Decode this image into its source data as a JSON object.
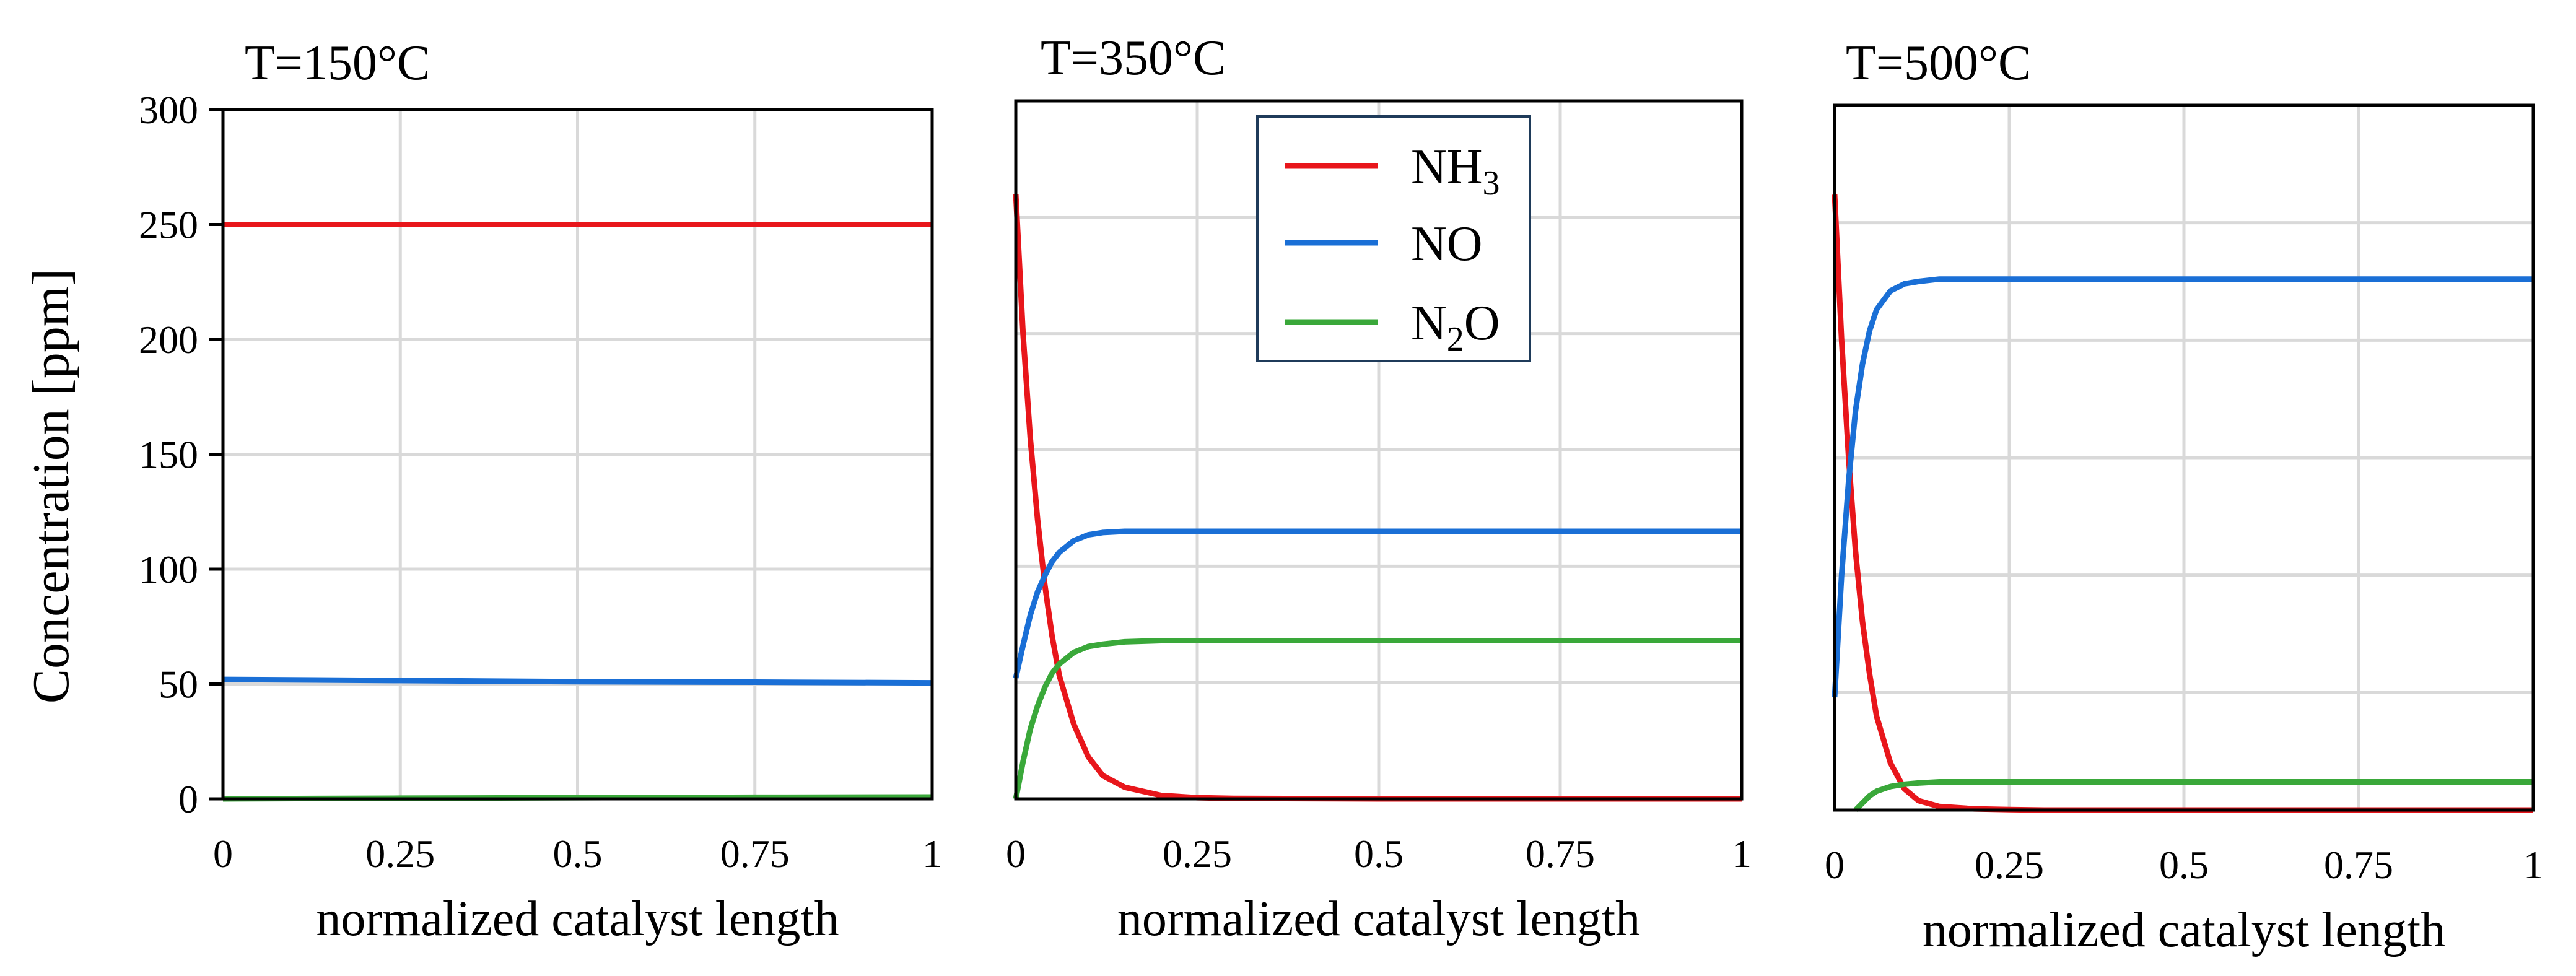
{
  "chart_data": {
    "type": "line",
    "ylabel": "Concentration [ppm]",
    "xlabel": "normalized catalyst length",
    "colors": {
      "NH3": "#e8161b",
      "NO": "#1a6fd6",
      "N2O": "#3aa83a"
    },
    "legend": {
      "placement": "top-center of middle panel",
      "entries": [
        {
          "key": "NH3",
          "base": "NH",
          "sub": "3",
          "after": ""
        },
        {
          "key": "NO",
          "base": "NO",
          "sub": "",
          "after": ""
        },
        {
          "key": "N2O",
          "base": "N",
          "sub": "2",
          "after": "O"
        }
      ]
    },
    "panels": [
      {
        "title": "T=150°C",
        "xlim": [
          0,
          1
        ],
        "ylim": [
          0,
          300
        ],
        "xticks": [
          "0",
          "0.25",
          "0.5",
          "0.75",
          "1"
        ],
        "yticks": [
          "0",
          "50",
          "100",
          "150",
          "200",
          "250",
          "300"
        ],
        "grid": true,
        "series": [
          {
            "name": "NH3",
            "x": [
              0,
              0.25,
              0.5,
              0.75,
              1
            ],
            "y": [
              250,
              250,
              250,
              250,
              250
            ]
          },
          {
            "name": "NO",
            "x": [
              0,
              0.25,
              0.5,
              0.75,
              1
            ],
            "y": [
              52,
              51.5,
              51,
              50.8,
              50.5
            ]
          },
          {
            "name": "N2O",
            "x": [
              0,
              0.25,
              0.5,
              0.75,
              1
            ],
            "y": [
              0,
              0.3,
              0.5,
              0.7,
              0.8
            ]
          }
        ]
      },
      {
        "title": "T=350°C",
        "xlim": [
          0,
          1
        ],
        "ylim": [
          0,
          300
        ],
        "xticks": [
          "0",
          "0.25",
          "0.5",
          "0.75",
          "1"
        ],
        "yticks": [],
        "grid": true,
        "series": [
          {
            "name": "NH3",
            "x": [
              0,
              0.01,
              0.02,
              0.03,
              0.04,
              0.05,
              0.06,
              0.08,
              0.1,
              0.12,
              0.15,
              0.2,
              0.25,
              0.3,
              0.5,
              0.75,
              1
            ],
            "y": [
              260,
              200,
              155,
              120,
              92,
              70,
              53,
              32,
              18,
              10,
              5,
              1.5,
              0.5,
              0.2,
              0,
              0,
              0
            ]
          },
          {
            "name": "NO",
            "x": [
              0,
              0.01,
              0.02,
              0.03,
              0.04,
              0.05,
              0.06,
              0.08,
              0.1,
              0.12,
              0.15,
              0.2,
              0.3,
              0.5,
              0.75,
              1
            ],
            "y": [
              52,
              66,
              79,
              89,
              96,
              102,
              106,
              111,
              113.5,
              114.5,
              115,
              115,
              115,
              115,
              115,
              115
            ]
          },
          {
            "name": "N2O",
            "x": [
              0,
              0.01,
              0.02,
              0.03,
              0.04,
              0.05,
              0.06,
              0.08,
              0.1,
              0.12,
              0.15,
              0.2,
              0.3,
              0.5,
              0.75,
              1
            ],
            "y": [
              0,
              16,
              30,
              40,
              48,
              54,
              58,
              63,
              65.5,
              66.5,
              67.5,
              68,
              68,
              68,
              68,
              68
            ]
          }
        ]
      },
      {
        "title": "T=500°C",
        "xlim": [
          0,
          1
        ],
        "ylim": [
          0,
          300
        ],
        "xticks": [
          "0",
          "0.25",
          "0.5",
          "0.75",
          "1"
        ],
        "yticks": [],
        "grid": true,
        "series": [
          {
            "name": "NH3",
            "x": [
              0,
              0.01,
              0.02,
              0.03,
              0.04,
              0.05,
              0.06,
              0.08,
              0.1,
              0.12,
              0.15,
              0.2,
              0.25,
              0.3,
              0.5,
              0.75,
              1
            ],
            "y": [
              262,
              200,
              150,
              110,
              80,
              58,
              40,
              20,
              9,
              4,
              1.5,
              0.5,
              0.2,
              0,
              0,
              0,
              0
            ]
          },
          {
            "name": "NO",
            "x": [
              0,
              0.01,
              0.02,
              0.03,
              0.04,
              0.05,
              0.06,
              0.08,
              0.1,
              0.12,
              0.15,
              0.2,
              0.3,
              0.5,
              0.75,
              1
            ],
            "y": [
              48,
              100,
              140,
              170,
              190,
              204,
              213,
              221,
              224,
              225,
              226,
              226,
              226,
              226,
              226,
              226
            ]
          },
          {
            "name": "N2O",
            "x": [
              0.03,
              0.04,
              0.05,
              0.06,
              0.08,
              0.1,
              0.12,
              0.15,
              0.2,
              0.3,
              0.5,
              0.75,
              1
            ],
            "y": [
              0,
              3,
              6,
              8,
              10,
              11,
              11.5,
              12,
              12,
              12,
              12,
              12,
              12
            ]
          }
        ]
      }
    ]
  }
}
